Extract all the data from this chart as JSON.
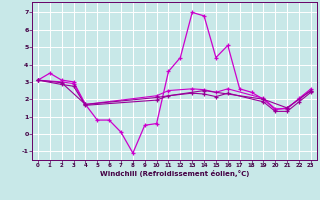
{
  "xlabel": "Windchill (Refroidissement éolien,°C)",
  "bg_color": "#c8e8e8",
  "grid_color": "#ffffff",
  "line_color": "#cc00cc",
  "line_color2": "#990099",
  "xlim": [
    -0.5,
    23.5
  ],
  "ylim": [
    -1.5,
    7.6
  ],
  "yticks": [
    -1,
    0,
    1,
    2,
    3,
    4,
    5,
    6,
    7
  ],
  "xticks": [
    0,
    1,
    2,
    3,
    4,
    5,
    6,
    7,
    8,
    9,
    10,
    11,
    12,
    13,
    14,
    15,
    16,
    17,
    18,
    19,
    20,
    21,
    22,
    23
  ],
  "line1_x": [
    0,
    1,
    2,
    3,
    4,
    5,
    6,
    7,
    8,
    9,
    10,
    11,
    12,
    13,
    14,
    15,
    16,
    17,
    18,
    19,
    20,
    21,
    22,
    23
  ],
  "line1_y": [
    3.1,
    3.5,
    3.1,
    3.0,
    1.7,
    0.8,
    0.8,
    0.1,
    -1.1,
    0.5,
    0.6,
    3.6,
    4.4,
    7.0,
    6.8,
    4.4,
    5.1,
    2.6,
    2.4,
    2.0,
    1.4,
    1.5,
    2.0,
    2.5
  ],
  "line2_x": [
    0,
    2,
    3,
    4,
    10,
    11,
    13,
    14,
    15,
    16,
    19,
    20,
    21,
    22,
    23
  ],
  "line2_y": [
    3.1,
    3.0,
    2.9,
    1.7,
    2.2,
    2.5,
    2.6,
    2.55,
    2.4,
    2.6,
    2.05,
    1.45,
    1.45,
    2.05,
    2.6
  ],
  "line3_x": [
    0,
    2,
    3,
    4,
    10,
    11,
    13,
    14,
    15,
    16,
    19,
    20,
    21,
    22,
    23
  ],
  "line3_y": [
    3.1,
    2.85,
    2.75,
    1.65,
    1.95,
    2.2,
    2.35,
    2.3,
    2.15,
    2.35,
    1.85,
    1.3,
    1.3,
    1.85,
    2.4
  ],
  "line4_x": [
    0,
    2,
    4,
    10,
    14,
    19,
    21,
    23
  ],
  "line4_y": [
    3.1,
    2.95,
    1.7,
    2.1,
    2.5,
    2.0,
    1.5,
    2.5
  ]
}
